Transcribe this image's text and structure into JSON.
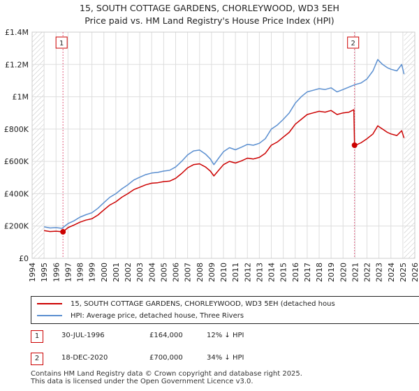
{
  "header": {
    "title_line1": "15, SOUTH COTTAGE GARDENS, CHORLEYWOOD, WD3 5EH",
    "title_line2": "Price paid vs. HM Land Registry's House Price Index (HPI)"
  },
  "colors": {
    "property": "#cc0000",
    "hpi": "#5b8fd0",
    "marker_line": "#e06080",
    "hatch": "#999999"
  },
  "chart_data": {
    "type": "line",
    "title": "15, SOUTH COTTAGE GARDENS, CHORLEYWOOD, WD3 5EH — Price paid vs. HM Land Registry's House Price Index (HPI)",
    "xlabel": "",
    "ylabel": "",
    "xlim": [
      1994,
      2026
    ],
    "ylim": [
      0,
      1400000
    ],
    "x_ticks": [
      1994,
      1995,
      1996,
      1997,
      1998,
      1999,
      2000,
      2001,
      2002,
      2003,
      2004,
      2005,
      2006,
      2007,
      2008,
      2009,
      2010,
      2011,
      2012,
      2013,
      2014,
      2015,
      2016,
      2017,
      2018,
      2019,
      2020,
      2021,
      2022,
      2023,
      2024,
      2025,
      2026
    ],
    "y_ticks": [
      0,
      200000,
      400000,
      600000,
      800000,
      1000000,
      1200000,
      1400000
    ],
    "y_tick_labels": [
      "£0",
      "£200K",
      "£400K",
      "£600K",
      "£800K",
      "£1M",
      "£1.2M",
      "£1.4M"
    ],
    "hatched_ranges": [
      [
        1994,
        1995.0
      ],
      [
        2025.1,
        2026
      ]
    ],
    "grid": true,
    "series": [
      {
        "name": "15, SOUTH COTTAGE GARDENS, CHORLEYWOOD, WD3 5EH (detached hous",
        "color": "#cc0000",
        "x": [
          1995.0,
          1995.5,
          1996.0,
          1996.58,
          1997.0,
          1997.5,
          1998.0,
          1998.5,
          1999.0,
          1999.5,
          2000.0,
          2000.5,
          2001.0,
          2001.5,
          2002.0,
          2002.5,
          2003.0,
          2003.5,
          2004.0,
          2004.5,
          2005.0,
          2005.5,
          2006.0,
          2006.5,
          2007.0,
          2007.5,
          2008.0,
          2008.5,
          2008.9,
          2009.2,
          2009.6,
          2010.0,
          2010.5,
          2011.0,
          2011.5,
          2012.0,
          2012.5,
          2013.0,
          2013.5,
          2014.0,
          2014.5,
          2015.0,
          2015.5,
          2016.0,
          2016.5,
          2017.0,
          2017.5,
          2018.0,
          2018.5,
          2019.0,
          2019.5,
          2020.0,
          2020.5,
          2020.9,
          2020.96,
          2021.2,
          2021.5,
          2022.0,
          2022.5,
          2022.9,
          2023.3,
          2023.7,
          2024.0,
          2024.5,
          2024.9,
          2025.1
        ],
        "y": [
          172000,
          166000,
          168000,
          164000,
          190000,
          206000,
          224000,
          237000,
          245000,
          268000,
          300000,
          330000,
          350000,
          378000,
          400000,
          425000,
          440000,
          455000,
          465000,
          468000,
          475000,
          478000,
          495000,
          525000,
          560000,
          580000,
          585000,
          565000,
          540000,
          510000,
          545000,
          580000,
          600000,
          590000,
          603000,
          620000,
          615000,
          625000,
          650000,
          700000,
          720000,
          750000,
          780000,
          830000,
          860000,
          890000,
          900000,
          910000,
          905000,
          915000,
          890000,
          900000,
          905000,
          920000,
          700000,
          705000,
          715000,
          740000,
          770000,
          820000,
          800000,
          780000,
          770000,
          760000,
          790000,
          745000
        ]
      },
      {
        "name": "HPI: Average price, detached house, Three Rivers",
        "color": "#5b8fd0",
        "x": [
          1995.0,
          1995.5,
          1996.0,
          1996.5,
          1997.0,
          1997.5,
          1998.0,
          1998.5,
          1999.0,
          1999.5,
          2000.0,
          2000.5,
          2001.0,
          2001.5,
          2002.0,
          2002.5,
          2003.0,
          2003.5,
          2004.0,
          2004.5,
          2005.0,
          2005.5,
          2006.0,
          2006.5,
          2007.0,
          2007.5,
          2008.0,
          2008.5,
          2008.9,
          2009.2,
          2009.6,
          2010.0,
          2010.5,
          2011.0,
          2011.5,
          2012.0,
          2012.5,
          2013.0,
          2013.5,
          2014.0,
          2014.5,
          2015.0,
          2015.5,
          2016.0,
          2016.5,
          2017.0,
          2017.5,
          2018.0,
          2018.5,
          2019.0,
          2019.5,
          2020.0,
          2020.5,
          2021.0,
          2021.5,
          2022.0,
          2022.5,
          2022.9,
          2023.3,
          2023.7,
          2024.0,
          2024.5,
          2024.9,
          2025.1
        ],
        "y": [
          195000,
          188000,
          190000,
          186000,
          215000,
          232000,
          255000,
          270000,
          282000,
          310000,
          345000,
          378000,
          400000,
          430000,
          455000,
          485000,
          502000,
          518000,
          528000,
          532000,
          540000,
          545000,
          565000,
          600000,
          640000,
          665000,
          670000,
          645000,
          615000,
          580000,
          620000,
          660000,
          685000,
          672000,
          688000,
          705000,
          700000,
          712000,
          740000,
          800000,
          825000,
          860000,
          900000,
          960000,
          1000000,
          1030000,
          1040000,
          1050000,
          1045000,
          1055000,
          1030000,
          1045000,
          1060000,
          1075000,
          1085000,
          1110000,
          1160000,
          1230000,
          1200000,
          1180000,
          1170000,
          1160000,
          1200000,
          1140000
        ]
      }
    ],
    "annotations": [
      {
        "label": "1",
        "x": 1996.58,
        "y": 164000
      },
      {
        "label": "2",
        "x": 2020.96,
        "y": 700000
      }
    ]
  },
  "legend": {
    "property_label": "15, SOUTH COTTAGE GARDENS, CHORLEYWOOD, WD3 5EH (detached hous",
    "hpi_label": "HPI: Average price, detached house, Three Rivers"
  },
  "transactions": [
    {
      "num": "1",
      "date": "30-JUL-1996",
      "price": "£164,000",
      "hpi": "12% ↓ HPI"
    },
    {
      "num": "2",
      "date": "18-DEC-2020",
      "price": "£700,000",
      "hpi": "34% ↓ HPI"
    }
  ],
  "footer": {
    "line1": "Contains HM Land Registry data © Crown copyright and database right 2025.",
    "line2": "This data is licensed under the Open Government Licence v3.0."
  }
}
